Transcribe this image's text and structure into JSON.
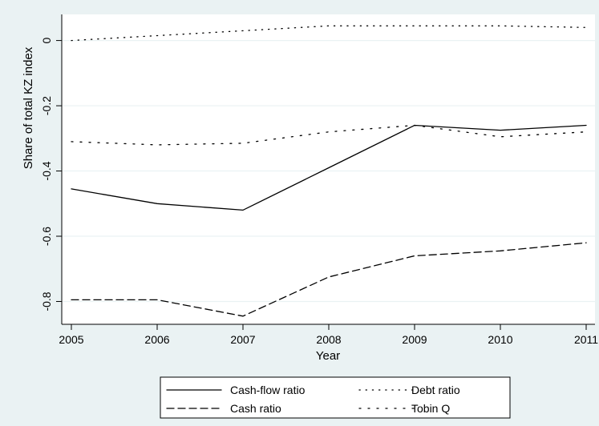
{
  "chart_data": {
    "type": "line",
    "title": "",
    "xlabel": "Year",
    "ylabel": "Share of total KZ index",
    "x": [
      2005,
      2006,
      2007,
      2008,
      2009,
      2010,
      2011
    ],
    "xlim": [
      2005,
      2011
    ],
    "ylim": [
      -0.87,
      0.08
    ],
    "xticks": [
      "2005",
      "2006",
      "2007",
      "2008",
      "2009",
      "2010",
      "2011"
    ],
    "yticks": [
      {
        "value": 0,
        "label": "0"
      },
      {
        "value": -0.2,
        "label": "-0.2"
      },
      {
        "value": -0.4,
        "label": "-0.4"
      },
      {
        "value": -0.6,
        "label": "-0.6"
      },
      {
        "value": -0.8,
        "label": "-0.8"
      }
    ],
    "grid": "horizontal",
    "legend_position": "bottom",
    "series": [
      {
        "name": "Cash-flow ratio",
        "style": "solid",
        "values": [
          -0.455,
          -0.5,
          -0.52,
          -0.39,
          -0.26,
          -0.275,
          -0.26
        ]
      },
      {
        "name": "Debt ratio",
        "style": "dotted",
        "values": [
          0.0,
          0.015,
          0.03,
          0.045,
          0.045,
          0.045,
          0.04
        ]
      },
      {
        "name": "Cash ratio",
        "style": "dashed",
        "values": [
          -0.795,
          -0.795,
          -0.845,
          -0.725,
          -0.66,
          -0.645,
          -0.62
        ]
      },
      {
        "name": "Tobin Q",
        "style": "dashdot",
        "values": [
          -0.31,
          -0.32,
          -0.315,
          -0.28,
          -0.26,
          -0.295,
          -0.28
        ]
      }
    ],
    "colors": {
      "line": "#000000",
      "plot_bg": "#ffffff",
      "page_bg": "#eaf2f3",
      "grid": "#eaf2f3"
    }
  }
}
